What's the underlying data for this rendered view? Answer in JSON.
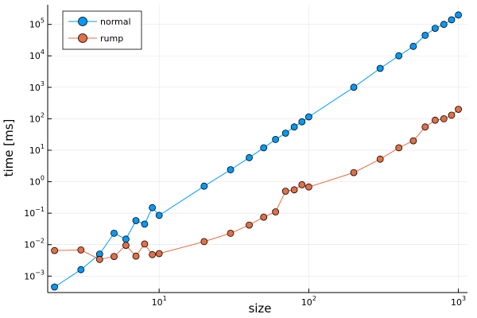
{
  "chart_data": {
    "type": "line",
    "title": "",
    "xlabel": "size",
    "ylabel": "time [ms]",
    "x_scale": "log",
    "y_scale": "log",
    "xlim": [
      1.8,
      1150
    ],
    "ylim": [
      0.0003,
      420000
    ],
    "x_ticks": [
      {
        "base": "10",
        "exp": "1",
        "value": 10
      },
      {
        "base": "10",
        "exp": "2",
        "value": 100
      },
      {
        "base": "10",
        "exp": "3",
        "value": 1000
      }
    ],
    "y_ticks": [
      {
        "base": "10",
        "exp": "−3",
        "value": 0.001
      },
      {
        "base": "10",
        "exp": "−2",
        "value": 0.01
      },
      {
        "base": "10",
        "exp": "−1",
        "value": 0.1
      },
      {
        "base": "10",
        "exp": "0",
        "value": 1
      },
      {
        "base": "10",
        "exp": "1",
        "value": 10
      },
      {
        "base": "10",
        "exp": "2",
        "value": 100
      },
      {
        "base": "10",
        "exp": "3",
        "value": 1000
      },
      {
        "base": "10",
        "exp": "4",
        "value": 10000
      },
      {
        "base": "10",
        "exp": "5",
        "value": 100000
      }
    ],
    "grid": true,
    "legend_position": "top-left",
    "x": [
      2,
      3,
      4,
      5,
      6,
      7,
      8,
      9,
      10,
      20,
      30,
      40,
      50,
      60,
      70,
      80,
      90,
      100,
      200,
      300,
      400,
      500,
      600,
      700,
      800,
      900,
      1000
    ],
    "series": [
      {
        "name": "normal",
        "color": "#009AFA",
        "values": [
          0.00045,
          0.0016,
          0.005,
          0.023,
          0.015,
          0.058,
          0.045,
          0.15,
          0.085,
          0.72,
          2.4,
          5.8,
          12,
          22,
          35,
          55,
          80,
          115,
          1000,
          4000,
          10000,
          20000,
          45000,
          75000,
          100000,
          140000,
          200000
        ]
      },
      {
        "name": "rump",
        "color": "#E36F47",
        "values": [
          0.0065,
          0.0068,
          0.0034,
          0.0042,
          0.0095,
          0.0043,
          0.0105,
          0.0048,
          0.0052,
          0.0125,
          0.023,
          0.042,
          0.075,
          0.11,
          0.5,
          0.55,
          0.8,
          0.68,
          1.95,
          5.2,
          12,
          20,
          55,
          90,
          100,
          130,
          200
        ]
      }
    ]
  }
}
